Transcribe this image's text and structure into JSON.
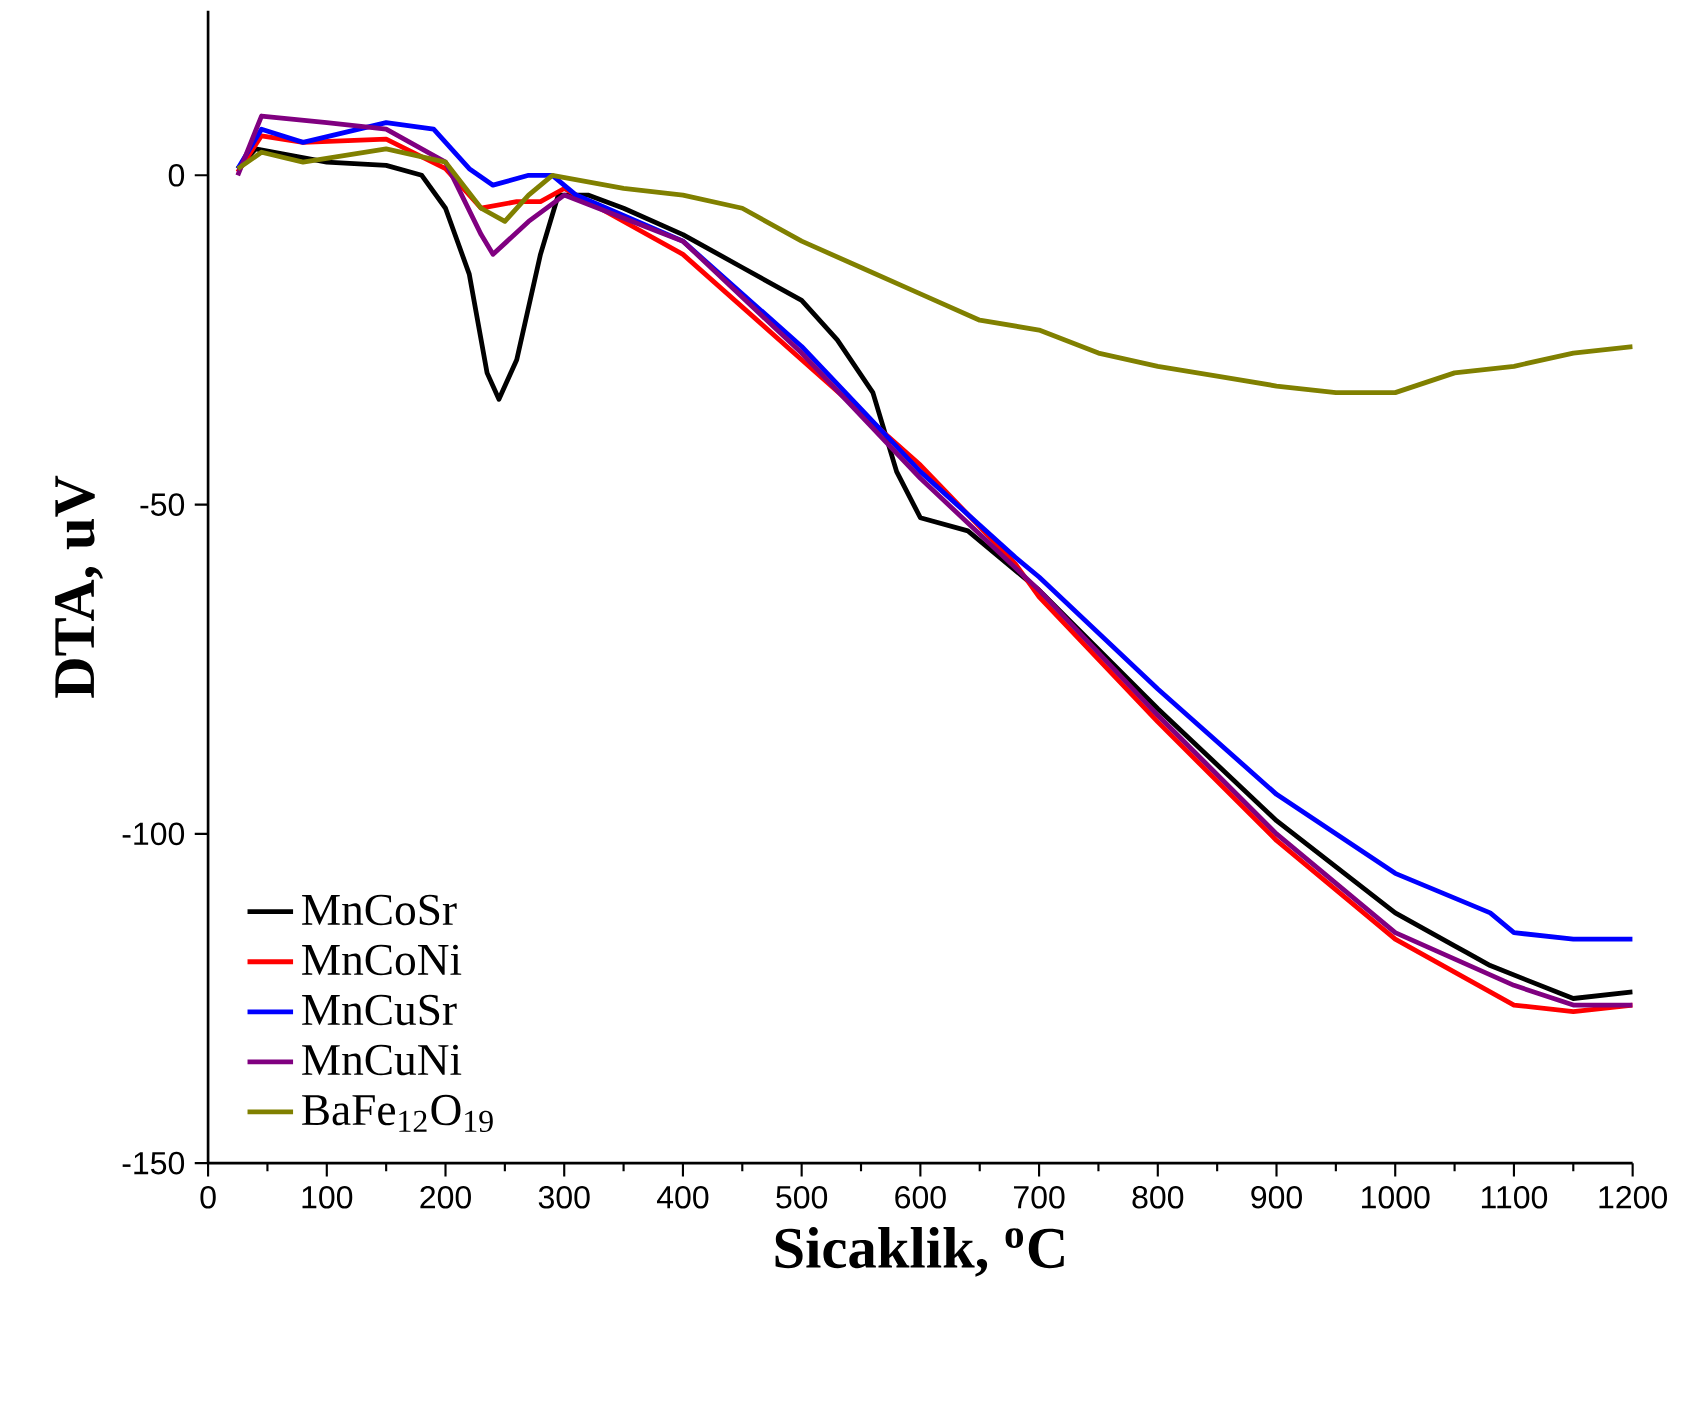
{
  "chart_data": {
    "type": "line",
    "xlabel": "Sicaklik, $^{o}$C",
    "ylabel": "DTA, uV",
    "xlim": [
      0,
      1200
    ],
    "xticks": [
      0,
      100,
      200,
      300,
      400,
      500,
      600,
      700,
      800,
      900,
      1000,
      1100,
      1200
    ],
    "ylim": [
      -150,
      25
    ],
    "yticks": [
      -150,
      -100,
      -50,
      0
    ],
    "grid": false,
    "legend": "bottom left",
    "marker": "none",
    "line_style": "solid",
    "series": [
      {
        "name": "MnCoSr",
        "color": "#000000",
        "x": [
          25,
          40,
          100,
          150,
          180,
          200,
          220,
          235,
          245,
          260,
          280,
          295,
          320,
          350,
          400,
          450,
          500,
          530,
          560,
          580,
          600,
          640,
          700,
          800,
          900,
          1000,
          1050,
          1060,
          1080,
          1150,
          1200
        ],
        "values": [
          1,
          4,
          2,
          1.5,
          0,
          -5,
          -15,
          -30,
          -34,
          -28,
          -12,
          -3,
          -3,
          -5,
          -9,
          -14,
          -19,
          -25,
          -33,
          -45,
          -52,
          -54,
          -63,
          -81,
          -98,
          -112,
          -117,
          -118,
          -120,
          -125,
          -124
        ]
      },
      {
        "name": "MnCoNi",
        "color": "#ff0000",
        "x": [
          25,
          45,
          80,
          150,
          200,
          230,
          260,
          280,
          300,
          400,
          500,
          600,
          680,
          700,
          800,
          900,
          1000,
          1100,
          1150,
          1200
        ],
        "values": [
          0.5,
          6,
          5,
          5.5,
          1,
          -5,
          -4,
          -4,
          -2,
          -12,
          -28,
          -44,
          -59,
          -64,
          -83,
          -101,
          -116,
          -126,
          -127,
          -126
        ]
      },
      {
        "name": "MnCuSr",
        "color": "#0000ff",
        "x": [
          25,
          45,
          80,
          150,
          190,
          220,
          240,
          270,
          290,
          310,
          400,
          500,
          600,
          680,
          700,
          800,
          900,
          1000,
          1080,
          1100,
          1150,
          1200
        ],
        "values": [
          1,
          7,
          5,
          8,
          7,
          1,
          -1.5,
          0,
          0,
          -3,
          -10,
          -26,
          -45,
          -58,
          -61,
          -78,
          -94,
          -106,
          -112,
          -115,
          -116,
          -116
        ]
      },
      {
        "name": "MnCuNi",
        "color": "#800080",
        "x": [
          25,
          45,
          100,
          150,
          200,
          230,
          240,
          270,
          300,
          400,
          500,
          600,
          700,
          800,
          900,
          1000,
          1100,
          1150,
          1200
        ],
        "values": [
          0,
          9,
          8,
          7,
          2,
          -9,
          -12,
          -7,
          -3,
          -10,
          -27,
          -46,
          -63,
          -82,
          -100,
          -115,
          -123,
          -126,
          -126
        ]
      },
      {
        "name": "BaFe$_{12}$O$_{19}$",
        "color": "#808000",
        "x": [
          25,
          45,
          80,
          150,
          200,
          230,
          250,
          270,
          290,
          350,
          400,
          450,
          500,
          550,
          600,
          650,
          700,
          750,
          800,
          850,
          900,
          950,
          1000,
          1050,
          1100,
          1150,
          1200
        ],
        "values": [
          1,
          3.5,
          2,
          4,
          2,
          -5,
          -7,
          -3,
          0,
          -2,
          -3,
          -5,
          -10,
          -14,
          -18,
          -22,
          -23.5,
          -27,
          -29,
          -30.5,
          -32,
          -33,
          -33,
          -30,
          -29,
          -27,
          -26
        ]
      }
    ]
  }
}
